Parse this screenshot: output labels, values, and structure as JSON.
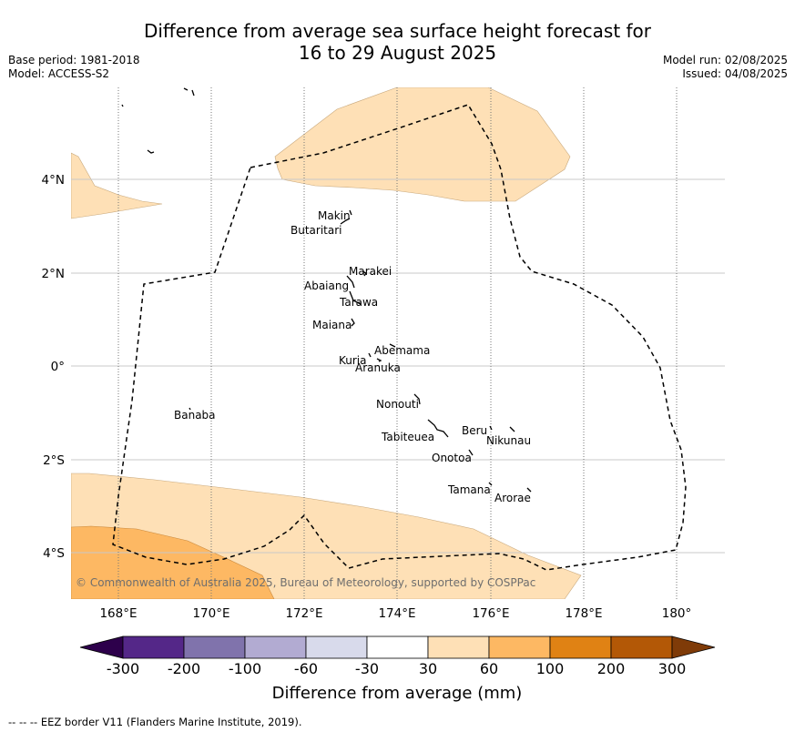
{
  "header": {
    "title_line1": "Difference from average sea surface height forecast for",
    "title_line2": "16 to 29 August 2025",
    "base_period": "Base period: 1981-2018",
    "model": "Model: ACCESS-S2",
    "model_run": "Model run: 02/08/2025",
    "issued": "Issued: 04/08/2025"
  },
  "map": {
    "lat_labels": [
      "4°N",
      "2°N",
      "0°",
      "2°S",
      "4°S"
    ],
    "lon_labels": [
      "168°E",
      "170°E",
      "172°E",
      "174°E",
      "176°E",
      "178°E",
      "180°"
    ],
    "copyright": "© Commonwealth of Australia 2025, Bureau of Meteorology, supported by COSPPac",
    "places": [
      {
        "name": "Makin"
      },
      {
        "name": "Butaritari"
      },
      {
        "name": "Marakei"
      },
      {
        "name": "Abaiang"
      },
      {
        "name": "Tarawa"
      },
      {
        "name": "Maiana"
      },
      {
        "name": "Abemama"
      },
      {
        "name": "Kuria"
      },
      {
        "name": "Aranuka"
      },
      {
        "name": "Nonouti"
      },
      {
        "name": "Banaba"
      },
      {
        "name": "Beru"
      },
      {
        "name": "Tabiteuea"
      },
      {
        "name": "Nikunau"
      },
      {
        "name": "Onotoa"
      },
      {
        "name": "Tamana"
      },
      {
        "name": "Arorae"
      }
    ]
  },
  "colorbar": {
    "label": "Difference from average (mm)",
    "ticks": [
      "-300",
      "-200",
      "-100",
      "-60",
      "-30",
      "30",
      "60",
      "100",
      "200",
      "300"
    ],
    "colors": {
      "below_-300": "#2d004b",
      "-300_-200": "#542788",
      "-200_-100": "#8073ac",
      "-100_-60": "#b2abd2",
      "-60_-30": "#d8daeb",
      "-30_30": "#ffffff",
      "30_60": "#fee0b6",
      "60_100": "#fdb863",
      "100_200": "#e08214",
      "200_300": "#b35806",
      "above_300": "#7f3b08"
    }
  },
  "footnote": "--  --  -- EEZ border V11 (Flanders Marine Institute, 2019)."
}
